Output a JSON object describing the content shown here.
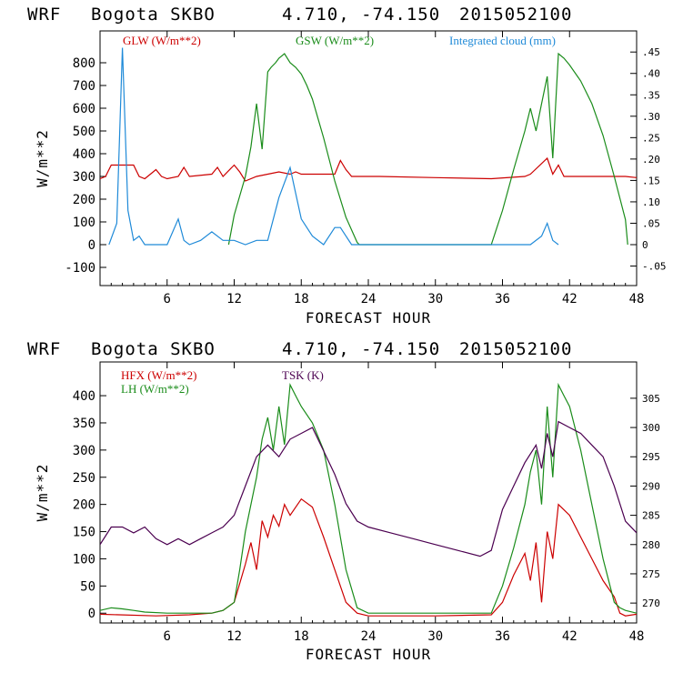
{
  "chart_data": [
    {
      "type": "line",
      "header": {
        "model": "WRF",
        "station": "Bogota SKBO",
        "coords": "4.710, -74.150",
        "init": "2015052100"
      },
      "xlabel": "FORECAST HOUR",
      "ylabel": "W/m**2",
      "xlim": [
        0,
        48
      ],
      "ylim": [
        -180,
        940
      ],
      "y2lim": [
        -0.0956,
        0.4993
      ],
      "x_ticks": [
        6,
        12,
        18,
        24,
        30,
        36,
        42,
        48
      ],
      "y_ticks": [
        -100,
        0,
        100,
        200,
        300,
        400,
        500,
        600,
        700,
        800
      ],
      "y2_ticks": [
        -0.05,
        0,
        0.05,
        0.1,
        0.15,
        0.2,
        0.25,
        0.3,
        0.35,
        0.4,
        0.45
      ],
      "y2_tick_labels": [
        "-.05",
        "0",
        ".05",
        ".10",
        ".15",
        ".20",
        ".25",
        ".30",
        ".35",
        ".40",
        ".45"
      ],
      "legend": [
        {
          "label": "GLW (W/m**2)",
          "color": "#cc0000"
        },
        {
          "label": "GSW (W/m**2)",
          "color": "#1a8c1a"
        },
        {
          "label": "Integrated cloud (mm)",
          "color": "#1f8ad8"
        }
      ],
      "series": [
        {
          "name": "GLW",
          "axis": "left",
          "color": "#cc0000",
          "x": [
            0,
            0.5,
            1,
            3,
            3.5,
            4,
            5,
            5.5,
            6,
            7,
            7.5,
            8,
            10,
            10.5,
            11,
            12,
            12.5,
            13,
            14,
            16,
            17,
            17.5,
            18,
            21,
            21.5,
            22,
            22.5,
            25,
            30,
            35,
            38,
            38.5,
            40,
            40.5,
            41,
            41.5,
            42,
            44,
            47,
            48
          ],
          "y": [
            290,
            300,
            350,
            350,
            300,
            290,
            330,
            300,
            290,
            300,
            340,
            300,
            310,
            340,
            300,
            350,
            320,
            280,
            300,
            320,
            310,
            320,
            310,
            310,
            370,
            330,
            300,
            300,
            295,
            290,
            300,
            310,
            380,
            310,
            350,
            300,
            300,
            300,
            300,
            295
          ]
        },
        {
          "name": "GSW",
          "axis": "left",
          "color": "#1a8c1a",
          "x": [
            11.5,
            12,
            13,
            13.5,
            14,
            14.5,
            15,
            15.3,
            15.7,
            16,
            16.5,
            17,
            17.5,
            18,
            18.5,
            19,
            20,
            21,
            22,
            23,
            23.2,
            35,
            36,
            37,
            38,
            38.5,
            39,
            39.5,
            40,
            40.5,
            41,
            41.5,
            42,
            43,
            44,
            45,
            46,
            47,
            47.2
          ],
          "y": [
            0,
            130,
            300,
            430,
            620,
            420,
            760,
            780,
            800,
            820,
            840,
            800,
            780,
            750,
            700,
            640,
            470,
            280,
            120,
            10,
            0,
            0,
            150,
            330,
            500,
            600,
            500,
            620,
            740,
            380,
            840,
            820,
            790,
            720,
            620,
            480,
            300,
            110,
            0
          ]
        },
        {
          "name": "Integrated cloud",
          "axis": "right",
          "color": "#1f8ad8",
          "x": [
            0.8,
            1.5,
            2,
            2.5,
            3,
            3.5,
            4,
            6,
            7,
            7.5,
            8,
            9,
            10,
            11,
            12,
            13,
            14,
            15,
            16,
            17,
            17.5,
            18,
            19,
            20,
            21,
            21.5,
            22,
            22.5,
            23,
            38.5,
            39.5,
            40,
            40.5,
            41
          ],
          "y": [
            0,
            0.05,
            0.46,
            0.08,
            0.01,
            0.02,
            0,
            0,
            0.06,
            0.01,
            0,
            0.01,
            0.03,
            0.01,
            0.01,
            0,
            0.01,
            0.01,
            0.11,
            0.18,
            0.12,
            0.06,
            0.02,
            0,
            0.04,
            0.04,
            0.02,
            0,
            0,
            0,
            0.02,
            0.05,
            0.01,
            0
          ]
        }
      ]
    },
    {
      "type": "line",
      "header": {
        "model": "WRF",
        "station": "Bogota SKBO",
        "coords": "4.710, -74.150",
        "init": "2015052100"
      },
      "xlabel": "FORECAST HOUR",
      "ylabel": "W/m**2",
      "xlim": [
        0,
        48
      ],
      "ylim": [
        -18,
        462
      ],
      "y2lim": [
        266.6,
        311.2
      ],
      "x_ticks": [
        6,
        12,
        18,
        24,
        30,
        36,
        42,
        48
      ],
      "y_ticks": [
        0,
        50,
        100,
        150,
        200,
        250,
        300,
        350,
        400
      ],
      "y2_ticks": [
        270,
        275,
        280,
        285,
        290,
        295,
        300,
        305
      ],
      "y2_tick_labels": [
        "270",
        "275",
        "280",
        "285",
        "290",
        "295",
        "300",
        "305"
      ],
      "legend": [
        {
          "label": "HFX (W/m**2)",
          "color": "#cc0000"
        },
        {
          "label": "LH  (W/m**2)",
          "color": "#1a8c1a"
        },
        {
          "label": "TSK (K)",
          "color": "#4b0050"
        }
      ],
      "series": [
        {
          "name": "HFX",
          "axis": "left",
          "color": "#cc0000",
          "x": [
            0,
            5,
            8,
            10,
            11,
            12,
            13,
            13.5,
            14,
            14.5,
            15,
            15.5,
            16,
            16.5,
            17,
            18,
            19,
            20,
            21,
            22,
            23,
            24,
            30,
            35,
            36,
            37,
            38,
            38.5,
            39,
            39.5,
            40,
            40.5,
            41,
            41.5,
            42,
            43,
            44,
            45,
            46,
            46.5,
            47,
            48
          ],
          "y": [
            -2,
            -5,
            -3,
            0,
            5,
            20,
            90,
            130,
            80,
            170,
            140,
            180,
            160,
            200,
            180,
            210,
            195,
            140,
            80,
            20,
            0,
            -5,
            -5,
            -3,
            20,
            70,
            110,
            60,
            130,
            20,
            150,
            100,
            200,
            190,
            180,
            140,
            100,
            60,
            30,
            0,
            -5,
            -2
          ]
        },
        {
          "name": "LH",
          "axis": "left",
          "color": "#1a8c1a",
          "x": [
            0,
            1,
            2,
            3,
            4,
            6,
            8,
            10,
            11,
            12,
            12.5,
            13,
            13.5,
            14,
            14.5,
            15,
            15.5,
            16,
            16.5,
            17,
            17.5,
            18,
            19,
            20,
            21,
            22,
            23,
            24,
            30,
            35,
            36,
            37,
            38,
            38.5,
            39,
            39.5,
            40,
            40.5,
            41,
            41.5,
            42,
            43,
            44,
            45,
            46,
            46.5,
            47,
            48
          ],
          "y": [
            5,
            10,
            8,
            5,
            2,
            0,
            0,
            0,
            5,
            20,
            80,
            150,
            200,
            250,
            320,
            360,
            300,
            380,
            310,
            420,
            400,
            380,
            350,
            300,
            200,
            80,
            10,
            0,
            0,
            0,
            50,
            120,
            200,
            260,
            300,
            200,
            380,
            250,
            420,
            400,
            380,
            300,
            200,
            100,
            20,
            10,
            5,
            0
          ]
        },
        {
          "name": "TSK",
          "axis": "right",
          "color": "#4b0050",
          "x": [
            0,
            1,
            2,
            3,
            4,
            5,
            6,
            7,
            8,
            9,
            10,
            11,
            12,
            13,
            14,
            15,
            16,
            17,
            18,
            19,
            20,
            21,
            22,
            23,
            24,
            26,
            28,
            30,
            32,
            34,
            35,
            36,
            37,
            38,
            39,
            39.5,
            40,
            40.5,
            41,
            42,
            43,
            44,
            45,
            46,
            47,
            48
          ],
          "y": [
            280,
            283,
            283,
            282,
            283,
            281,
            280,
            281,
            280,
            281,
            282,
            283,
            285,
            290,
            295,
            297,
            295,
            298,
            299,
            300,
            296,
            292,
            287,
            284,
            283,
            282,
            281,
            280,
            279,
            278,
            279,
            286,
            290,
            294,
            297,
            293,
            299,
            295,
            301,
            300,
            299,
            297,
            295,
            290,
            284,
            282
          ]
        }
      ]
    }
  ]
}
